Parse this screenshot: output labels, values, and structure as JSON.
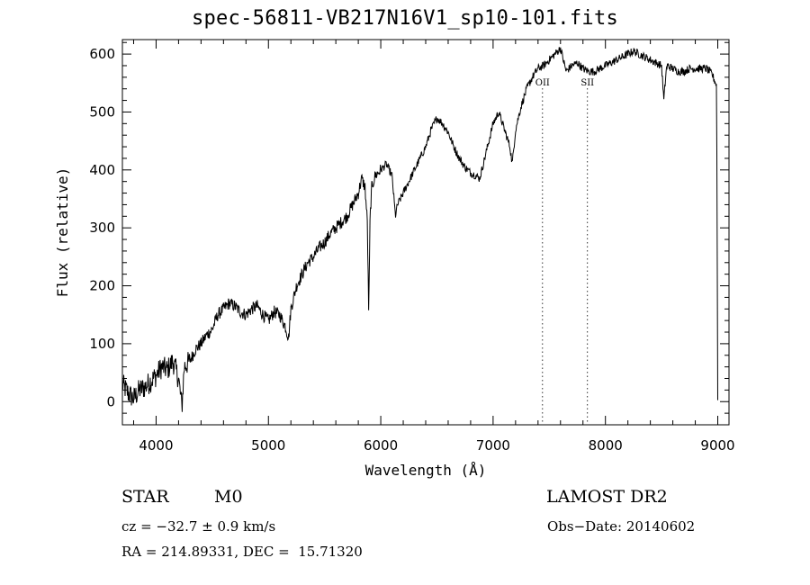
{
  "chart_data": {
    "type": "line",
    "title": "spec-56811-VB217N16V1_sp10-101.fits",
    "xlabel": "Wavelength (Å)",
    "ylabel": "Flux (relative)",
    "xlim": [
      3700,
      9100
    ],
    "ylim": [
      -40,
      625
    ],
    "x_ticks": [
      4000,
      5000,
      6000,
      7000,
      8000,
      9000
    ],
    "y_ticks": [
      0,
      100,
      200,
      300,
      400,
      500,
      600
    ],
    "grid": false,
    "series": [
      {
        "x": [
          3700,
          3750,
          3800,
          3850,
          3900,
          3950,
          4000,
          4050,
          4100,
          4150,
          4200,
          4230,
          4250,
          4300,
          4350,
          4400,
          4450,
          4500,
          4550,
          4600,
          4650,
          4700,
          4750,
          4800,
          4850,
          4900,
          4950,
          5000,
          5050,
          5100,
          5150,
          5180,
          5200,
          5250,
          5300,
          5350,
          5400,
          5450,
          5500,
          5550,
          5600,
          5650,
          5700,
          5750,
          5800,
          5830,
          5860,
          5880,
          5893,
          5905,
          5920,
          5950,
          6000,
          6050,
          6100,
          6130,
          6150,
          6200,
          6250,
          6300,
          6350,
          6400,
          6450,
          6500,
          6550,
          6600,
          6650,
          6700,
          6750,
          6800,
          6850,
          6880,
          6900,
          6950,
          7000,
          7050,
          7100,
          7150,
          7170,
          7200,
          7250,
          7300,
          7350,
          7400,
          7450,
          7500,
          7550,
          7600,
          7650,
          7700,
          7750,
          7800,
          7850,
          7900,
          7950,
          8000,
          8050,
          8100,
          8150,
          8200,
          8250,
          8300,
          8350,
          8400,
          8450,
          8500,
          8520,
          8540,
          8550,
          8600,
          8650,
          8700,
          8750,
          8800,
          8850,
          8900,
          8950,
          8990,
          9000
        ],
        "y": [
          30,
          15,
          5,
          20,
          25,
          35,
          45,
          60,
          55,
          70,
          40,
          -10,
          60,
          70,
          90,
          100,
          115,
          125,
          150,
          160,
          170,
          165,
          155,
          150,
          160,
          165,
          150,
          140,
          155,
          150,
          130,
          110,
          160,
          200,
          220,
          240,
          250,
          265,
          275,
          290,
          300,
          310,
          320,
          340,
          360,
          385,
          370,
          310,
          150,
          320,
          370,
          390,
          400,
          410,
          390,
          320,
          340,
          360,
          380,
          400,
          420,
          440,
          470,
          490,
          480,
          465,
          440,
          420,
          405,
          395,
          390,
          385,
          400,
          440,
          480,
          500,
          470,
          440,
          410,
          470,
          510,
          540,
          560,
          575,
          580,
          590,
          600,
          610,
          570,
          580,
          585,
          575,
          570,
          570,
          575,
          580,
          585,
          590,
          595,
          600,
          605,
          600,
          595,
          590,
          585,
          580,
          520,
          570,
          580,
          575,
          570,
          570,
          575,
          575,
          575,
          575,
          565,
          545,
          5
        ]
      }
    ],
    "annotations": [
      {
        "text": "OII",
        "x": 7440
      },
      {
        "text": "SII",
        "x": 7840
      }
    ]
  },
  "info": {
    "object_type": "STAR",
    "subclass": "M0",
    "survey": "LAMOST DR2",
    "cz": "cz = −32.7 ± 0.9 km/s",
    "obs_date": "Obs−Date: 20140602",
    "coords": "RA = 214.89331, DEC =  15.71320"
  }
}
